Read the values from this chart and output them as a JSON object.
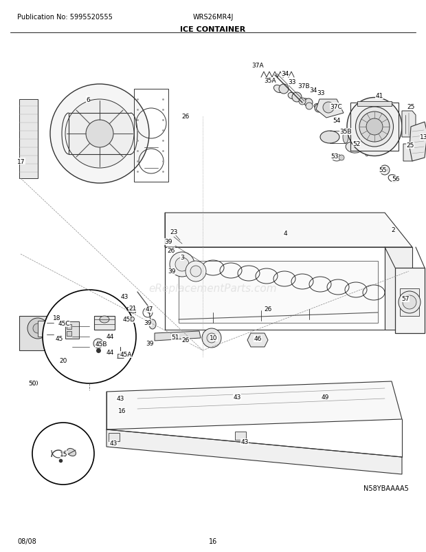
{
  "pub_no": "Publication No: 5995520555",
  "model": "WRS26MR4J",
  "title": "ICE CONTAINER",
  "diagram_id": "N58YBAAAA5",
  "date": "08/08",
  "page": "16",
  "bg_color": "#ffffff",
  "text_color": "#000000",
  "watermark": "eReplacementParts.com",
  "line_color": "#333333",
  "dashed_color": "#555555"
}
